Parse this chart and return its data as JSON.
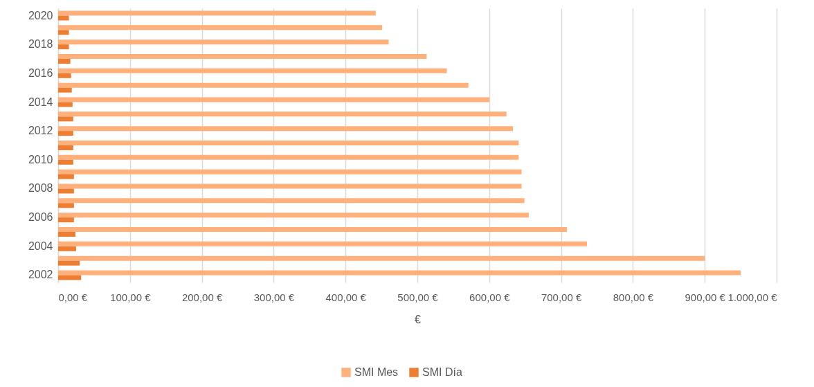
{
  "chart_data": {
    "type": "bar",
    "orientation": "horizontal",
    "categories": [
      "2020",
      null,
      "2018",
      null,
      "2016",
      null,
      "2014",
      null,
      "2012",
      null,
      "2010",
      null,
      "2008",
      null,
      "2006",
      null,
      "2004",
      null,
      "2002"
    ],
    "series": [
      {
        "name": "SMI Mes",
        "color": "#ffb07b",
        "values": [
          442,
          451,
          460,
          513,
          541,
          571,
          600,
          624,
          633,
          641,
          641,
          645,
          645,
          649,
          655,
          708,
          736,
          900,
          950
        ]
      },
      {
        "name": "SMI Día",
        "color": "#ed7d31",
        "values": [
          15,
          15,
          15,
          17,
          18,
          19,
          20,
          21,
          21,
          21,
          21,
          22,
          22,
          22,
          22,
          24,
          25,
          30,
          32
        ]
      }
    ],
    "xlabel": "€",
    "xlim": [
      0,
      1000
    ],
    "xticks": [
      {
        "value": 0,
        "label": "0,00 €"
      },
      {
        "value": 100,
        "label": "100,00 €"
      },
      {
        "value": 200,
        "label": "200,00 €"
      },
      {
        "value": 300,
        "label": "300,00 €"
      },
      {
        "value": 400,
        "label": "400,00 €"
      },
      {
        "value": 500,
        "label": "500,00 €"
      },
      {
        "value": 600,
        "label": "600,00 €"
      },
      {
        "value": 700,
        "label": "700,00 €"
      },
      {
        "value": 800,
        "label": "800,00 €"
      },
      {
        "value": 900,
        "label": "900,00 €"
      },
      {
        "value": 1000,
        "label": "1.000,00 €"
      }
    ],
    "grid": "x",
    "legend": "bottom"
  }
}
